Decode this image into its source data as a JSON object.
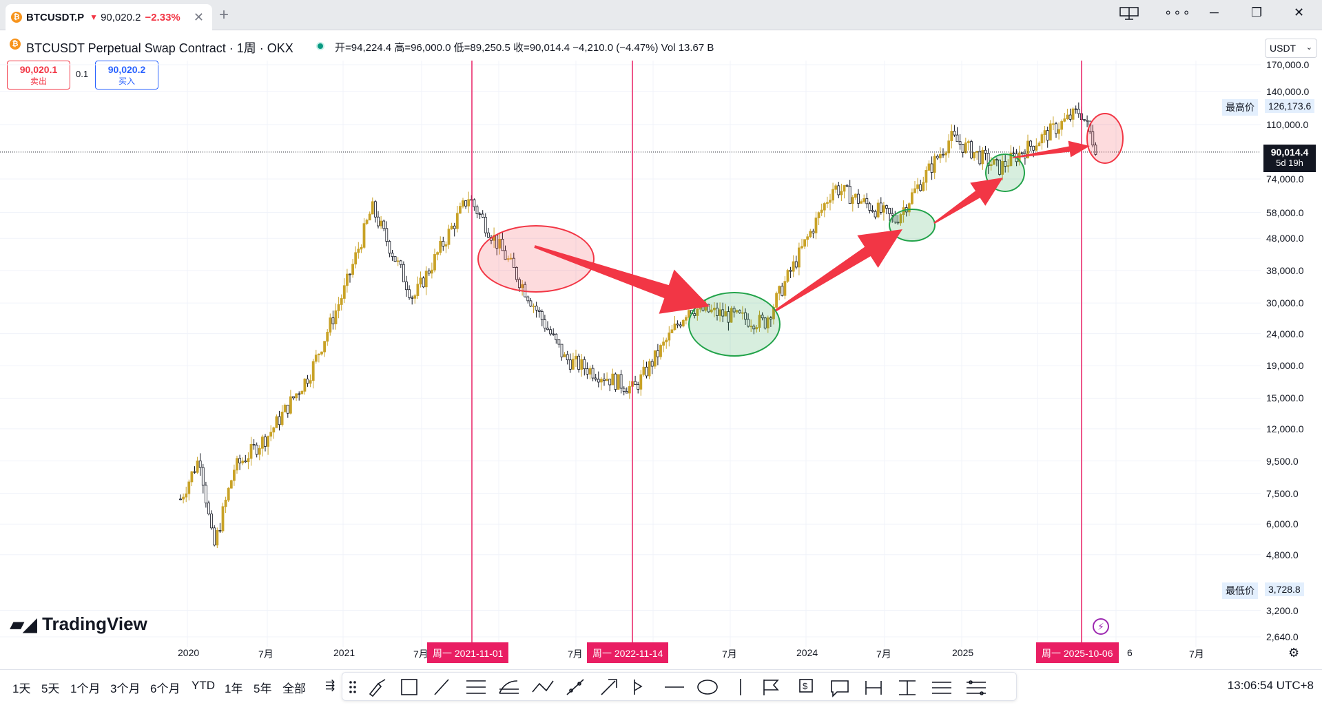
{
  "tab": {
    "symbol": "BTCUSDT.P",
    "arrow": "▼",
    "price": "90,020.2",
    "change": "−2.33%",
    "close": "✕",
    "new_tab": "+"
  },
  "window": {
    "layout_icon": "layout-icon",
    "more": "∘∘∘",
    "minimize": "─",
    "restore": "❐",
    "close": "✕"
  },
  "header": {
    "title": "BTCUSDT Perpetual Swap Contract · 1周 · OKX",
    "ohlc": "开=94,224.4  高=96,000.0  低=89,250.5  收=90,014.4  −4,210.0 (−4.47%)  Vol 13.67 B"
  },
  "trade": {
    "sell_price": "90,020.1",
    "sell_label": "卖出",
    "spread": "0.1",
    "buy_price": "90,020.2",
    "buy_label": "买入"
  },
  "currency": "USDT",
  "price_axis": [
    {
      "label": "170,000.0",
      "value": 170000
    },
    {
      "label": "140,000.0",
      "value": 140000
    },
    {
      "label": "110,000.0",
      "value": 110000
    },
    {
      "label": "74,000.0",
      "value": 74000
    },
    {
      "label": "58,000.0",
      "value": 58000
    },
    {
      "label": "48,000.0",
      "value": 48000
    },
    {
      "label": "38,000.0",
      "value": 38000
    },
    {
      "label": "30,000.0",
      "value": 30000
    },
    {
      "label": "24,000.0",
      "value": 24000
    },
    {
      "label": "19,000.0",
      "value": 19000
    },
    {
      "label": "15,000.0",
      "value": 15000
    },
    {
      "label": "12,000.0",
      "value": 12000
    },
    {
      "label": "9,500.0",
      "value": 9500
    },
    {
      "label": "7,500.0",
      "value": 7500
    },
    {
      "label": "6,000.0",
      "value": 6000
    },
    {
      "label": "4,800.0",
      "value": 4800
    },
    {
      "label": "3,200.0",
      "value": 3200
    },
    {
      "label": "2,640.0",
      "value": 2640
    }
  ],
  "high_label": {
    "name": "最高价",
    "value": "126,173.6"
  },
  "low_label": {
    "name": "最低价",
    "value": "3,728.8"
  },
  "current_price": {
    "value": "90,014.4",
    "countdown": "5d 19h"
  },
  "time_axis": [
    "2020",
    "7月",
    "2021",
    "7月",
    "7月",
    "7月",
    "2024",
    "7月",
    "2025",
    "6",
    "7月"
  ],
  "vertical_markers": [
    "周一 2021-11-01",
    "周一 2022-11-14",
    "周一 2025-10-06"
  ],
  "branding": "TradingView",
  "timeframes": [
    "1天",
    "5天",
    "1个月",
    "3个月",
    "6个月",
    "YTD",
    "1年",
    "5年",
    "全部"
  ],
  "clock": "13:06:54 UTC+8",
  "chart_data": {
    "type": "candlestick",
    "scale": "log",
    "x_unit": "week",
    "ylim": [
      2640,
      170000
    ],
    "series_close_approx": [
      {
        "x": "2019-12",
        "y": 7200
      },
      {
        "x": "2020-02",
        "y": 9800
      },
      {
        "x": "2020-03",
        "y": 5000
      },
      {
        "x": "2020-05",
        "y": 9000
      },
      {
        "x": "2020-08",
        "y": 11500
      },
      {
        "x": "2020-11",
        "y": 18000
      },
      {
        "x": "2021-01",
        "y": 33000
      },
      {
        "x": "2021-04",
        "y": 60000
      },
      {
        "x": "2021-07",
        "y": 31000
      },
      {
        "x": "2021-11",
        "y": 65000
      },
      {
        "x": "2022-02",
        "y": 40000
      },
      {
        "x": "2022-06",
        "y": 20000
      },
      {
        "x": "2022-11",
        "y": 16000
      },
      {
        "x": "2023-04",
        "y": 29000
      },
      {
        "x": "2023-09",
        "y": 26000
      },
      {
        "x": "2024-03",
        "y": 70000
      },
      {
        "x": "2024-08",
        "y": 55000
      },
      {
        "x": "2024-12",
        "y": 100000
      },
      {
        "x": "2025-04",
        "y": 80000
      },
      {
        "x": "2025-10",
        "y": 122000
      },
      {
        "x": "2025-11",
        "y": 90014
      }
    ]
  },
  "colors": {
    "up": "#c9a227",
    "down": "#131722",
    "marker": "#e91e63",
    "sell": "#f23645",
    "buy": "#2962ff",
    "ellipse_red": "#f23645",
    "ellipse_green": "#22a34a",
    "arrow": "#f23645"
  }
}
